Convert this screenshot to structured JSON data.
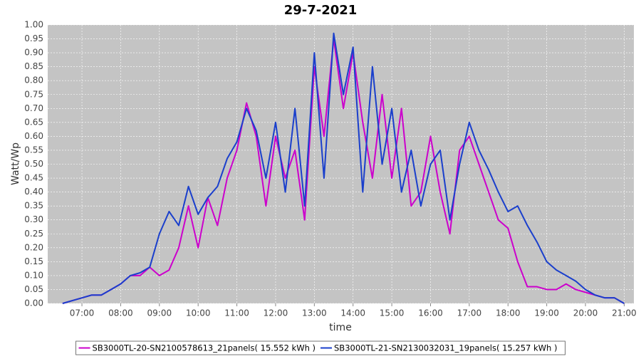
{
  "chart_data": {
    "type": "line",
    "title": "29-7-2021",
    "xlabel": "time",
    "ylabel": "Watt/Wp",
    "x": [
      "06:30",
      "06:45",
      "07:00",
      "07:15",
      "07:30",
      "07:45",
      "08:00",
      "08:15",
      "08:30",
      "08:45",
      "09:00",
      "09:15",
      "09:30",
      "09:45",
      "10:00",
      "10:15",
      "10:30",
      "10:45",
      "11:00",
      "11:15",
      "11:30",
      "11:45",
      "12:00",
      "12:15",
      "12:30",
      "12:45",
      "13:00",
      "13:15",
      "13:30",
      "13:45",
      "14:00",
      "14:15",
      "14:30",
      "14:45",
      "15:00",
      "15:15",
      "15:30",
      "15:45",
      "16:00",
      "16:15",
      "16:30",
      "16:45",
      "17:00",
      "17:15",
      "17:30",
      "17:45",
      "18:00",
      "18:15",
      "18:30",
      "18:45",
      "19:00",
      "19:15",
      "19:30",
      "19:45",
      "20:00",
      "20:15",
      "20:30",
      "20:45",
      "21:00"
    ],
    "series": [
      {
        "name": "SB3000TL-20-SN2100578613_21panels( 15.552 kWh )",
        "color": "#cc00cc",
        "values": [
          0.0,
          0.01,
          0.02,
          0.03,
          0.03,
          0.05,
          0.07,
          0.1,
          0.1,
          0.13,
          0.1,
          0.12,
          0.2,
          0.35,
          0.2,
          0.38,
          0.28,
          0.45,
          0.55,
          0.72,
          0.6,
          0.35,
          0.6,
          0.45,
          0.55,
          0.3,
          0.85,
          0.6,
          0.95,
          0.7,
          0.9,
          0.65,
          0.45,
          0.75,
          0.45,
          0.7,
          0.35,
          0.4,
          0.6,
          0.4,
          0.25,
          0.55,
          0.6,
          0.5,
          0.4,
          0.3,
          0.27,
          0.15,
          0.06,
          0.06,
          0.05,
          0.05,
          0.07,
          0.05,
          0.04,
          0.03,
          0.02,
          0.02,
          0.0
        ]
      },
      {
        "name": "SB3000TL-21-SN2130032031_19panels( 15.257 kWh )",
        "color": "#1a3fcc",
        "values": [
          0.0,
          0.01,
          0.02,
          0.03,
          0.03,
          0.05,
          0.07,
          0.1,
          0.11,
          0.13,
          0.25,
          0.33,
          0.28,
          0.42,
          0.32,
          0.38,
          0.42,
          0.52,
          0.58,
          0.7,
          0.62,
          0.45,
          0.65,
          0.4,
          0.7,
          0.35,
          0.9,
          0.45,
          0.97,
          0.75,
          0.92,
          0.4,
          0.85,
          0.5,
          0.7,
          0.4,
          0.55,
          0.35,
          0.5,
          0.55,
          0.3,
          0.5,
          0.65,
          0.55,
          0.48,
          0.4,
          0.33,
          0.35,
          0.28,
          0.22,
          0.15,
          0.12,
          0.1,
          0.08,
          0.05,
          0.03,
          0.02,
          0.02,
          0.0
        ]
      }
    ],
    "xlim": [
      "06:07",
      "21:15"
    ],
    "xticks": [
      "07:00",
      "08:00",
      "09:00",
      "10:00",
      "11:00",
      "12:00",
      "13:00",
      "14:00",
      "15:00",
      "16:00",
      "17:00",
      "18:00",
      "19:00",
      "20:00",
      "21:00"
    ],
    "ylim": [
      0,
      1
    ],
    "yticks": [
      {
        "value": 0,
        "label": "0.00"
      },
      {
        "value": 0.05,
        "label": "0.05"
      },
      {
        "value": 0.1,
        "label": "0.10"
      },
      {
        "value": 0.15,
        "label": "0.15"
      },
      {
        "value": 0.2,
        "label": "0.20"
      },
      {
        "value": 0.25,
        "label": "0.25"
      },
      {
        "value": 0.3,
        "label": "0.30"
      },
      {
        "value": 0.35,
        "label": "0.35"
      },
      {
        "value": 0.4,
        "label": "0.40"
      },
      {
        "value": 0.45,
        "label": "0.45"
      },
      {
        "value": 0.5,
        "label": "0.50"
      },
      {
        "value": 0.55,
        "label": "0.55"
      },
      {
        "value": 0.6,
        "label": "0.60"
      },
      {
        "value": 0.65,
        "label": "0.65"
      },
      {
        "value": 0.7,
        "label": "0.70"
      },
      {
        "value": 0.75,
        "label": "0.75"
      },
      {
        "value": 0.8,
        "label": "0.80"
      },
      {
        "value": 0.85,
        "label": "0.85"
      },
      {
        "value": 0.9,
        "label": "0.90"
      },
      {
        "value": 0.95,
        "label": "0.95"
      },
      {
        "value": 1,
        "label": "1.00"
      }
    ],
    "grid": true,
    "legend": "bottom"
  }
}
